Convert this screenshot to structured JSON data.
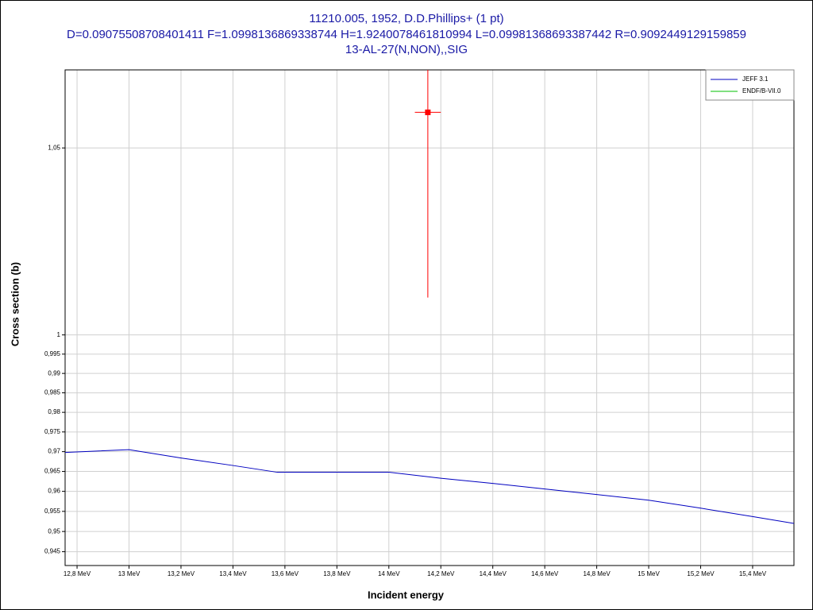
{
  "chart_data": {
    "type": "line",
    "title": [
      "11210.005, 1952, D.D.Phillips+ (1 pt)",
      "D=0.09075508708401411 F=1.0998136869338744 H=1.9240078461810994 L=0.09981368693387442 R=0.9092449129159859",
      "13-AL-27(N,NON),,SIG"
    ],
    "xlabel": "Incident energy",
    "ylabel": "Cross section (b)",
    "ylog": true,
    "grid": true,
    "legend": "upper right",
    "xlim": [
      12.754,
      15.559
    ],
    "xticks": [
      {
        "value": 12.8,
        "label": "12,8 MeV"
      },
      {
        "value": 13.0,
        "label": "13 MeV"
      },
      {
        "value": 13.2,
        "label": "13,2 MeV"
      },
      {
        "value": 13.4,
        "label": "13,4 MeV"
      },
      {
        "value": 13.6,
        "label": "13,6 MeV"
      },
      {
        "value": 13.8,
        "label": "13,8 MeV"
      },
      {
        "value": 14.0,
        "label": "14 MeV"
      },
      {
        "value": 14.2,
        "label": "14,2 MeV"
      },
      {
        "value": 14.4,
        "label": "14,4 MeV"
      },
      {
        "value": 14.6,
        "label": "14,6 MeV"
      },
      {
        "value": 14.8,
        "label": "14,8 MeV"
      },
      {
        "value": 15.0,
        "label": "15 MeV"
      },
      {
        "value": 15.2,
        "label": "15,2 MeV"
      },
      {
        "value": 15.4,
        "label": "15,4 MeV"
      }
    ],
    "ylim": [
      0.9416,
      1.0716
    ],
    "yticks": [
      {
        "value": 0.945,
        "label": "0,945"
      },
      {
        "value": 0.95,
        "label": "0,95"
      },
      {
        "value": 0.955,
        "label": "0,955"
      },
      {
        "value": 0.96,
        "label": "0,96"
      },
      {
        "value": 0.965,
        "label": "0,965"
      },
      {
        "value": 0.97,
        "label": "0,97"
      },
      {
        "value": 0.975,
        "label": "0,975"
      },
      {
        "value": 0.98,
        "label": "0,98"
      },
      {
        "value": 0.985,
        "label": "0,985"
      },
      {
        "value": 0.99,
        "label": "0,99"
      },
      {
        "value": 0.995,
        "label": "0,995"
      },
      1,
      {
        "value": 1.05,
        "label": "1,05"
      }
    ],
    "series": [
      {
        "name": "JEFF 3.1",
        "color": "#0000c0",
        "x": [
          12.754,
          13.0,
          13.2,
          13.4,
          13.57,
          14.0,
          14.2,
          14.4,
          14.6,
          14.8,
          15.0,
          15.2,
          15.4,
          15.559
        ],
        "values": [
          0.9698,
          0.9705,
          0.9684,
          0.9665,
          0.9648,
          0.9648,
          0.9633,
          0.962,
          0.9606,
          0.9592,
          0.9578,
          0.9558,
          0.9537,
          0.952
        ]
      },
      {
        "name": "ENDF/B-VII.0",
        "color": "#00c000",
        "x": [],
        "values": []
      }
    ],
    "points": {
      "color": "#ff0000",
      "x": [
        14.15
      ],
      "values": [
        1.0598
      ],
      "xerr": [
        0.05
      ],
      "yerr": [
        0.05
      ]
    }
  }
}
